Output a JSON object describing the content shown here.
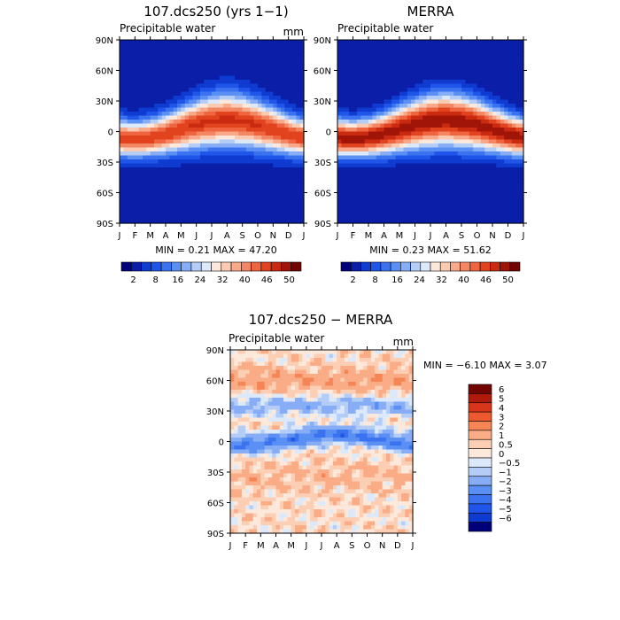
{
  "chart_data": [
    {
      "type": "heatmap",
      "title": "107.dcs250 (yrs 1−1)",
      "subtitle": "Precipitable water",
      "units": "mm",
      "x_ticks": [
        "J",
        "F",
        "M",
        "A",
        "M",
        "J",
        "J",
        "A",
        "S",
        "O",
        "N",
        "D",
        "J"
      ],
      "y_ticks": [
        "90N",
        "60N",
        "30N",
        "0",
        "30S",
        "60S",
        "90S"
      ],
      "stats": "MIN =    0.21 MAX =   47.20",
      "min": 0.21,
      "max": 47.2,
      "colorbar_labels": [
        "2",
        "8",
        "16",
        "24",
        "32",
        "40",
        "46",
        "50"
      ],
      "colorbar_colors": [
        "#00007a",
        "#0a1ea8",
        "#0f3bd0",
        "#1f55e8",
        "#3b72f0",
        "#5a8ff3",
        "#86adf5",
        "#b4cdf7",
        "#dce9fa",
        "#fde9dc",
        "#fbcab2",
        "#f8a98a",
        "#f48763",
        "#ee6540",
        "#e2431f",
        "#c92a10",
        "#a01508",
        "#730500"
      ],
      "cbar_min": 0,
      "cbar_max": 52,
      "field": "model"
    },
    {
      "type": "heatmap",
      "title": "MERRA",
      "subtitle": "Precipitable water",
      "units": "",
      "x_ticks": [
        "J",
        "F",
        "M",
        "A",
        "M",
        "J",
        "J",
        "A",
        "S",
        "O",
        "N",
        "D",
        "J"
      ],
      "y_ticks": [
        "90N",
        "60N",
        "30N",
        "0",
        "30S",
        "60S",
        "90S"
      ],
      "stats": "MIN =    0.23 MAX =   51.62",
      "min": 0.23,
      "max": 51.62,
      "colorbar_labels": [
        "2",
        "8",
        "16",
        "24",
        "32",
        "40",
        "46",
        "50"
      ],
      "colorbar_colors": [
        "#00007a",
        "#0a1ea8",
        "#0f3bd0",
        "#1f55e8",
        "#3b72f0",
        "#5a8ff3",
        "#86adf5",
        "#b4cdf7",
        "#dce9fa",
        "#fde9dc",
        "#fbcab2",
        "#f8a98a",
        "#f48763",
        "#ee6540",
        "#e2431f",
        "#c92a10",
        "#a01508",
        "#730500"
      ],
      "cbar_min": 0,
      "cbar_max": 52,
      "field": "obs"
    },
    {
      "type": "heatmap",
      "title": "107.dcs250 − MERRA",
      "subtitle": "Precipitable water",
      "units": "mm",
      "x_ticks": [
        "J",
        "F",
        "M",
        "A",
        "M",
        "J",
        "J",
        "A",
        "S",
        "O",
        "N",
        "D",
        "J"
      ],
      "y_ticks": [
        "90N",
        "60N",
        "30N",
        "0",
        "30S",
        "60S",
        "90S"
      ],
      "stats": "MIN =   −6.10 MAX =    3.07",
      "min": -6.1,
      "max": 3.07,
      "colorbar_labels": [
        "6",
        "5",
        "4",
        "3",
        "2",
        "1",
        "0.5",
        "0",
        "−0.5",
        "−1",
        "−2",
        "−3",
        "−4",
        "−5",
        "−6"
      ],
      "colorbar_colors": [
        "#730500",
        "#b01a0a",
        "#d8361a",
        "#ee5a30",
        "#f58555",
        "#f9ac85",
        "#fccfb5",
        "#fde9dc",
        "#dce9fa",
        "#b4cdf7",
        "#86adf5",
        "#5a8ff3",
        "#3b72f0",
        "#1f55e8",
        "#0f3bd0",
        "#00007a"
      ],
      "cbar_min": -6.5,
      "cbar_max": 6.5,
      "field": "diff"
    }
  ]
}
